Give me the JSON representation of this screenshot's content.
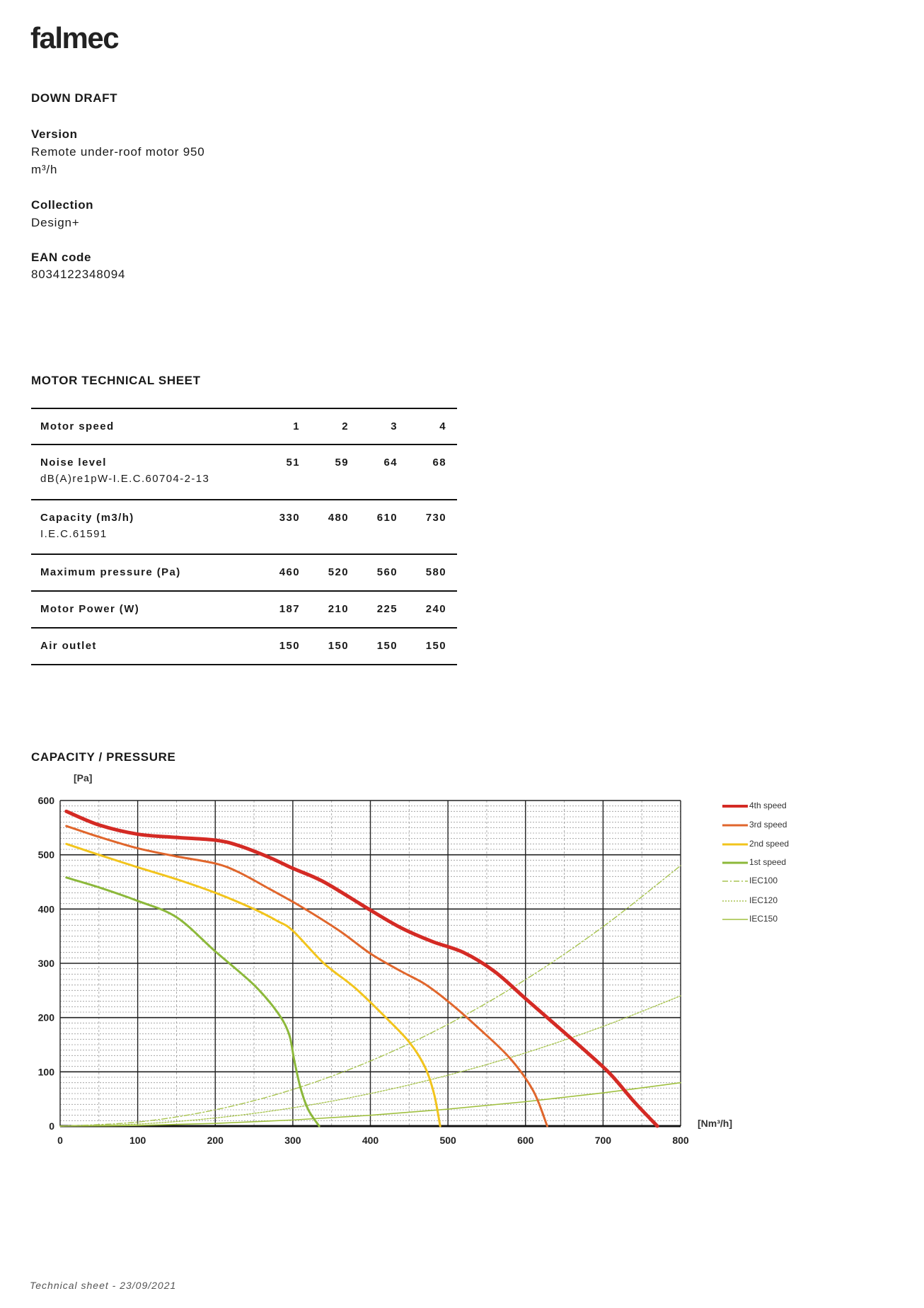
{
  "logo": "falmec",
  "product": {
    "category": "DOWN DRAFT",
    "version_label": "Version",
    "version_line1": "Remote under-roof motor 950",
    "version_line2": "m³/h",
    "collection_label": "Collection",
    "collection_value": "Design+",
    "ean_label": "EAN code",
    "ean_value": "8034122348094"
  },
  "motor_sheet": {
    "title": "MOTOR TECHNICAL SHEET",
    "rows": [
      {
        "label": "Motor speed",
        "sub": "",
        "values": [
          "1",
          "2",
          "3",
          "4"
        ]
      },
      {
        "label": "Noise level",
        "sub": "dB(A)re1pW-I.E.C.60704-2-13",
        "values": [
          "51",
          "59",
          "64",
          "68"
        ]
      },
      {
        "label": "Capacity (m3/h)",
        "sub": "I.E.C.61591",
        "values": [
          "330",
          "480",
          "610",
          "730"
        ]
      },
      {
        "label": "Maximum pressure (Pa)",
        "sub": "",
        "values": [
          "460",
          "520",
          "560",
          "580"
        ]
      },
      {
        "label": "Motor Power (W)",
        "sub": "",
        "values": [
          "187",
          "210",
          "225",
          "240"
        ]
      },
      {
        "label": "Air outlet",
        "sub": "",
        "values": [
          "150",
          "150",
          "150",
          "150"
        ]
      }
    ]
  },
  "chart_title": "CAPACITY / PRESSURE",
  "chart_data": {
    "type": "line",
    "title": "CAPACITY / PRESSURE",
    "xlabel": "[Nm³/h]",
    "ylabel": "[Pa]",
    "xlim": [
      0,
      800
    ],
    "ylim": [
      0,
      600
    ],
    "xticks": [
      "0",
      "100",
      "200",
      "300",
      "400",
      "500",
      "600",
      "700",
      "800"
    ],
    "yticks": [
      "0",
      "100",
      "200",
      "300",
      "400",
      "500",
      "600"
    ],
    "grid": true,
    "legend_position": "right",
    "series": [
      {
        "name": "4th speed",
        "color": "#d42a24",
        "style": "solid-thick",
        "points": [
          [
            8,
            580
          ],
          [
            50,
            555
          ],
          [
            100,
            538
          ],
          [
            150,
            532
          ],
          [
            200,
            527
          ],
          [
            230,
            517
          ],
          [
            270,
            495
          ],
          [
            300,
            475
          ],
          [
            340,
            450
          ],
          [
            400,
            398
          ],
          [
            440,
            365
          ],
          [
            480,
            340
          ],
          [
            520,
            320
          ],
          [
            560,
            285
          ],
          [
            600,
            235
          ],
          [
            640,
            185
          ],
          [
            680,
            135
          ],
          [
            710,
            95
          ],
          [
            740,
            45
          ],
          [
            770,
            0
          ]
        ]
      },
      {
        "name": "3rd speed",
        "color": "#e0662c",
        "style": "solid",
        "points": [
          [
            8,
            553
          ],
          [
            50,
            533
          ],
          [
            100,
            512
          ],
          [
            150,
            497
          ],
          [
            200,
            484
          ],
          [
            230,
            468
          ],
          [
            270,
            437
          ],
          [
            310,
            405
          ],
          [
            360,
            360
          ],
          [
            400,
            318
          ],
          [
            440,
            285
          ],
          [
            470,
            262
          ],
          [
            500,
            230
          ],
          [
            540,
            180
          ],
          [
            580,
            125
          ],
          [
            610,
            65
          ],
          [
            628,
            0
          ]
        ]
      },
      {
        "name": "2nd speed",
        "color": "#f2c41c",
        "style": "solid",
        "points": [
          [
            8,
            520
          ],
          [
            50,
            500
          ],
          [
            100,
            477
          ],
          [
            150,
            455
          ],
          [
            200,
            430
          ],
          [
            250,
            400
          ],
          [
            280,
            378
          ],
          [
            300,
            360
          ],
          [
            340,
            300
          ],
          [
            380,
            255
          ],
          [
            420,
            200
          ],
          [
            450,
            155
          ],
          [
            470,
            110
          ],
          [
            482,
            60
          ],
          [
            490,
            0
          ]
        ]
      },
      {
        "name": "1st speed",
        "color": "#8cb83a",
        "style": "solid",
        "points": [
          [
            8,
            458
          ],
          [
            50,
            440
          ],
          [
            100,
            415
          ],
          [
            150,
            385
          ],
          [
            200,
            322
          ],
          [
            250,
            260
          ],
          [
            280,
            210
          ],
          [
            295,
            170
          ],
          [
            302,
            120
          ],
          [
            310,
            70
          ],
          [
            320,
            30
          ],
          [
            334,
            0
          ]
        ]
      },
      {
        "name": "IEC100",
        "color": "#a8c450",
        "style": "dash-dot",
        "points": [
          [
            0,
            0
          ],
          [
            100,
            7.5
          ],
          [
            200,
            30
          ],
          [
            300,
            67.5
          ],
          [
            400,
            120
          ],
          [
            500,
            187.5
          ],
          [
            600,
            270
          ],
          [
            700,
            367.5
          ],
          [
            800,
            480
          ]
        ]
      },
      {
        "name": "IEC120",
        "color": "#a8c450",
        "style": "dotted",
        "points": [
          [
            0,
            0
          ],
          [
            100,
            3.75
          ],
          [
            200,
            15
          ],
          [
            300,
            33.75
          ],
          [
            400,
            60
          ],
          [
            500,
            93.75
          ],
          [
            600,
            135
          ],
          [
            700,
            183.75
          ],
          [
            800,
            240
          ]
        ]
      },
      {
        "name": "IEC150",
        "color": "#a0c040",
        "style": "thin",
        "points": [
          [
            0,
            0
          ],
          [
            100,
            1.25
          ],
          [
            200,
            5
          ],
          [
            300,
            11.25
          ],
          [
            400,
            20
          ],
          [
            500,
            31.25
          ],
          [
            600,
            45
          ],
          [
            700,
            61.25
          ],
          [
            800,
            80
          ]
        ]
      }
    ]
  },
  "footer": "Technical sheet - 23/09/2021"
}
